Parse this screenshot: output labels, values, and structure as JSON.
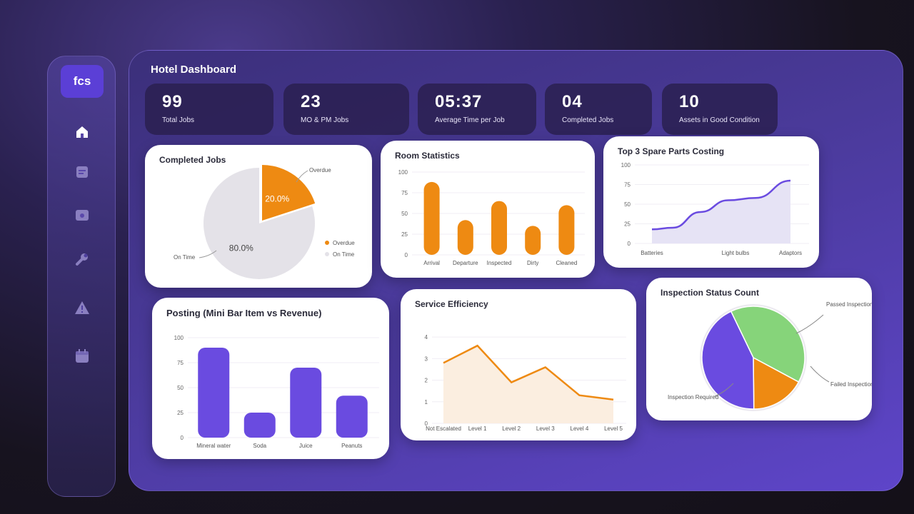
{
  "logo": {
    "text": "fcs"
  },
  "sidebar": {
    "items": [
      {
        "icon": "home-icon"
      },
      {
        "icon": "document-icon"
      },
      {
        "icon": "folder-icon"
      },
      {
        "icon": "wrench-icon"
      },
      {
        "icon": "warning-icon"
      },
      {
        "icon": "calendar-icon"
      }
    ]
  },
  "dashboard": {
    "title": "Hotel Dashboard"
  },
  "stats": [
    {
      "value": "99",
      "label": "Total Jobs"
    },
    {
      "value": "23",
      "label": "MO & PM Jobs"
    },
    {
      "value": "05:37",
      "label": "Average Time per Job"
    },
    {
      "value": "04",
      "label": "Completed Jobs"
    },
    {
      "value": "10",
      "label": "Assets in Good Condition"
    }
  ],
  "colors": {
    "orange": "#ee8a12",
    "purple": "#6a4be0",
    "green": "#86d47a",
    "grey": "#e4e2e8"
  },
  "chart_data": [
    {
      "type": "pie",
      "title": "Completed Jobs",
      "slices": [
        {
          "name": "Overdue",
          "value": 20.0,
          "label": "20.0%"
        },
        {
          "name": "On Time",
          "value": 80.0,
          "label": "80.0%"
        }
      ],
      "legend": [
        "Overdue",
        "On Time"
      ]
    },
    {
      "type": "bar",
      "title": "Room Statistics",
      "categories": [
        "Arrival",
        "Departure",
        "Inspected",
        "Dirty",
        "Cleaned"
      ],
      "values": [
        88,
        42,
        65,
        35,
        60
      ],
      "yticks": [
        "0",
        "25",
        "50",
        "75",
        "100"
      ],
      "ylim": [
        0,
        100
      ]
    },
    {
      "type": "area",
      "title": "Top 3 Spare Parts Costing",
      "categories": [
        "Batteries",
        "Light bulbs",
        "Adaptors"
      ],
      "x": [
        0,
        0.15,
        0.35,
        0.55,
        0.75,
        1.0
      ],
      "values": [
        18,
        20,
        40,
        55,
        58,
        80
      ],
      "yticks": [
        "0",
        "25",
        "50",
        "75",
        "100"
      ],
      "ylim": [
        0,
        100
      ]
    },
    {
      "type": "bar",
      "title": "Posting (Mini Bar Item vs Revenue)",
      "categories": [
        "Mineral water",
        "Soda",
        "Juice",
        "Peanuts"
      ],
      "values": [
        90,
        25,
        70,
        42
      ],
      "yticks": [
        "0",
        "25",
        "50",
        "75",
        "100"
      ],
      "ylim": [
        0,
        100
      ]
    },
    {
      "type": "line",
      "title": "Service Efficiency",
      "categories": [
        "Not Escalated",
        "Level 1",
        "Level 2",
        "Level 3",
        "Level 4",
        "Level 5"
      ],
      "values": [
        2.8,
        3.6,
        1.9,
        2.6,
        1.3,
        1.1
      ],
      "yticks": [
        "0",
        "1",
        "2",
        "3",
        "4"
      ],
      "ylim": [
        0,
        4.5
      ]
    },
    {
      "type": "pie",
      "title": "Inspection Status Count",
      "slices": [
        {
          "name": "Passed Inspection",
          "value": 40
        },
        {
          "name": "Failed Inspection",
          "value": 17
        },
        {
          "name": "Inspection Required",
          "value": 43
        }
      ]
    }
  ]
}
